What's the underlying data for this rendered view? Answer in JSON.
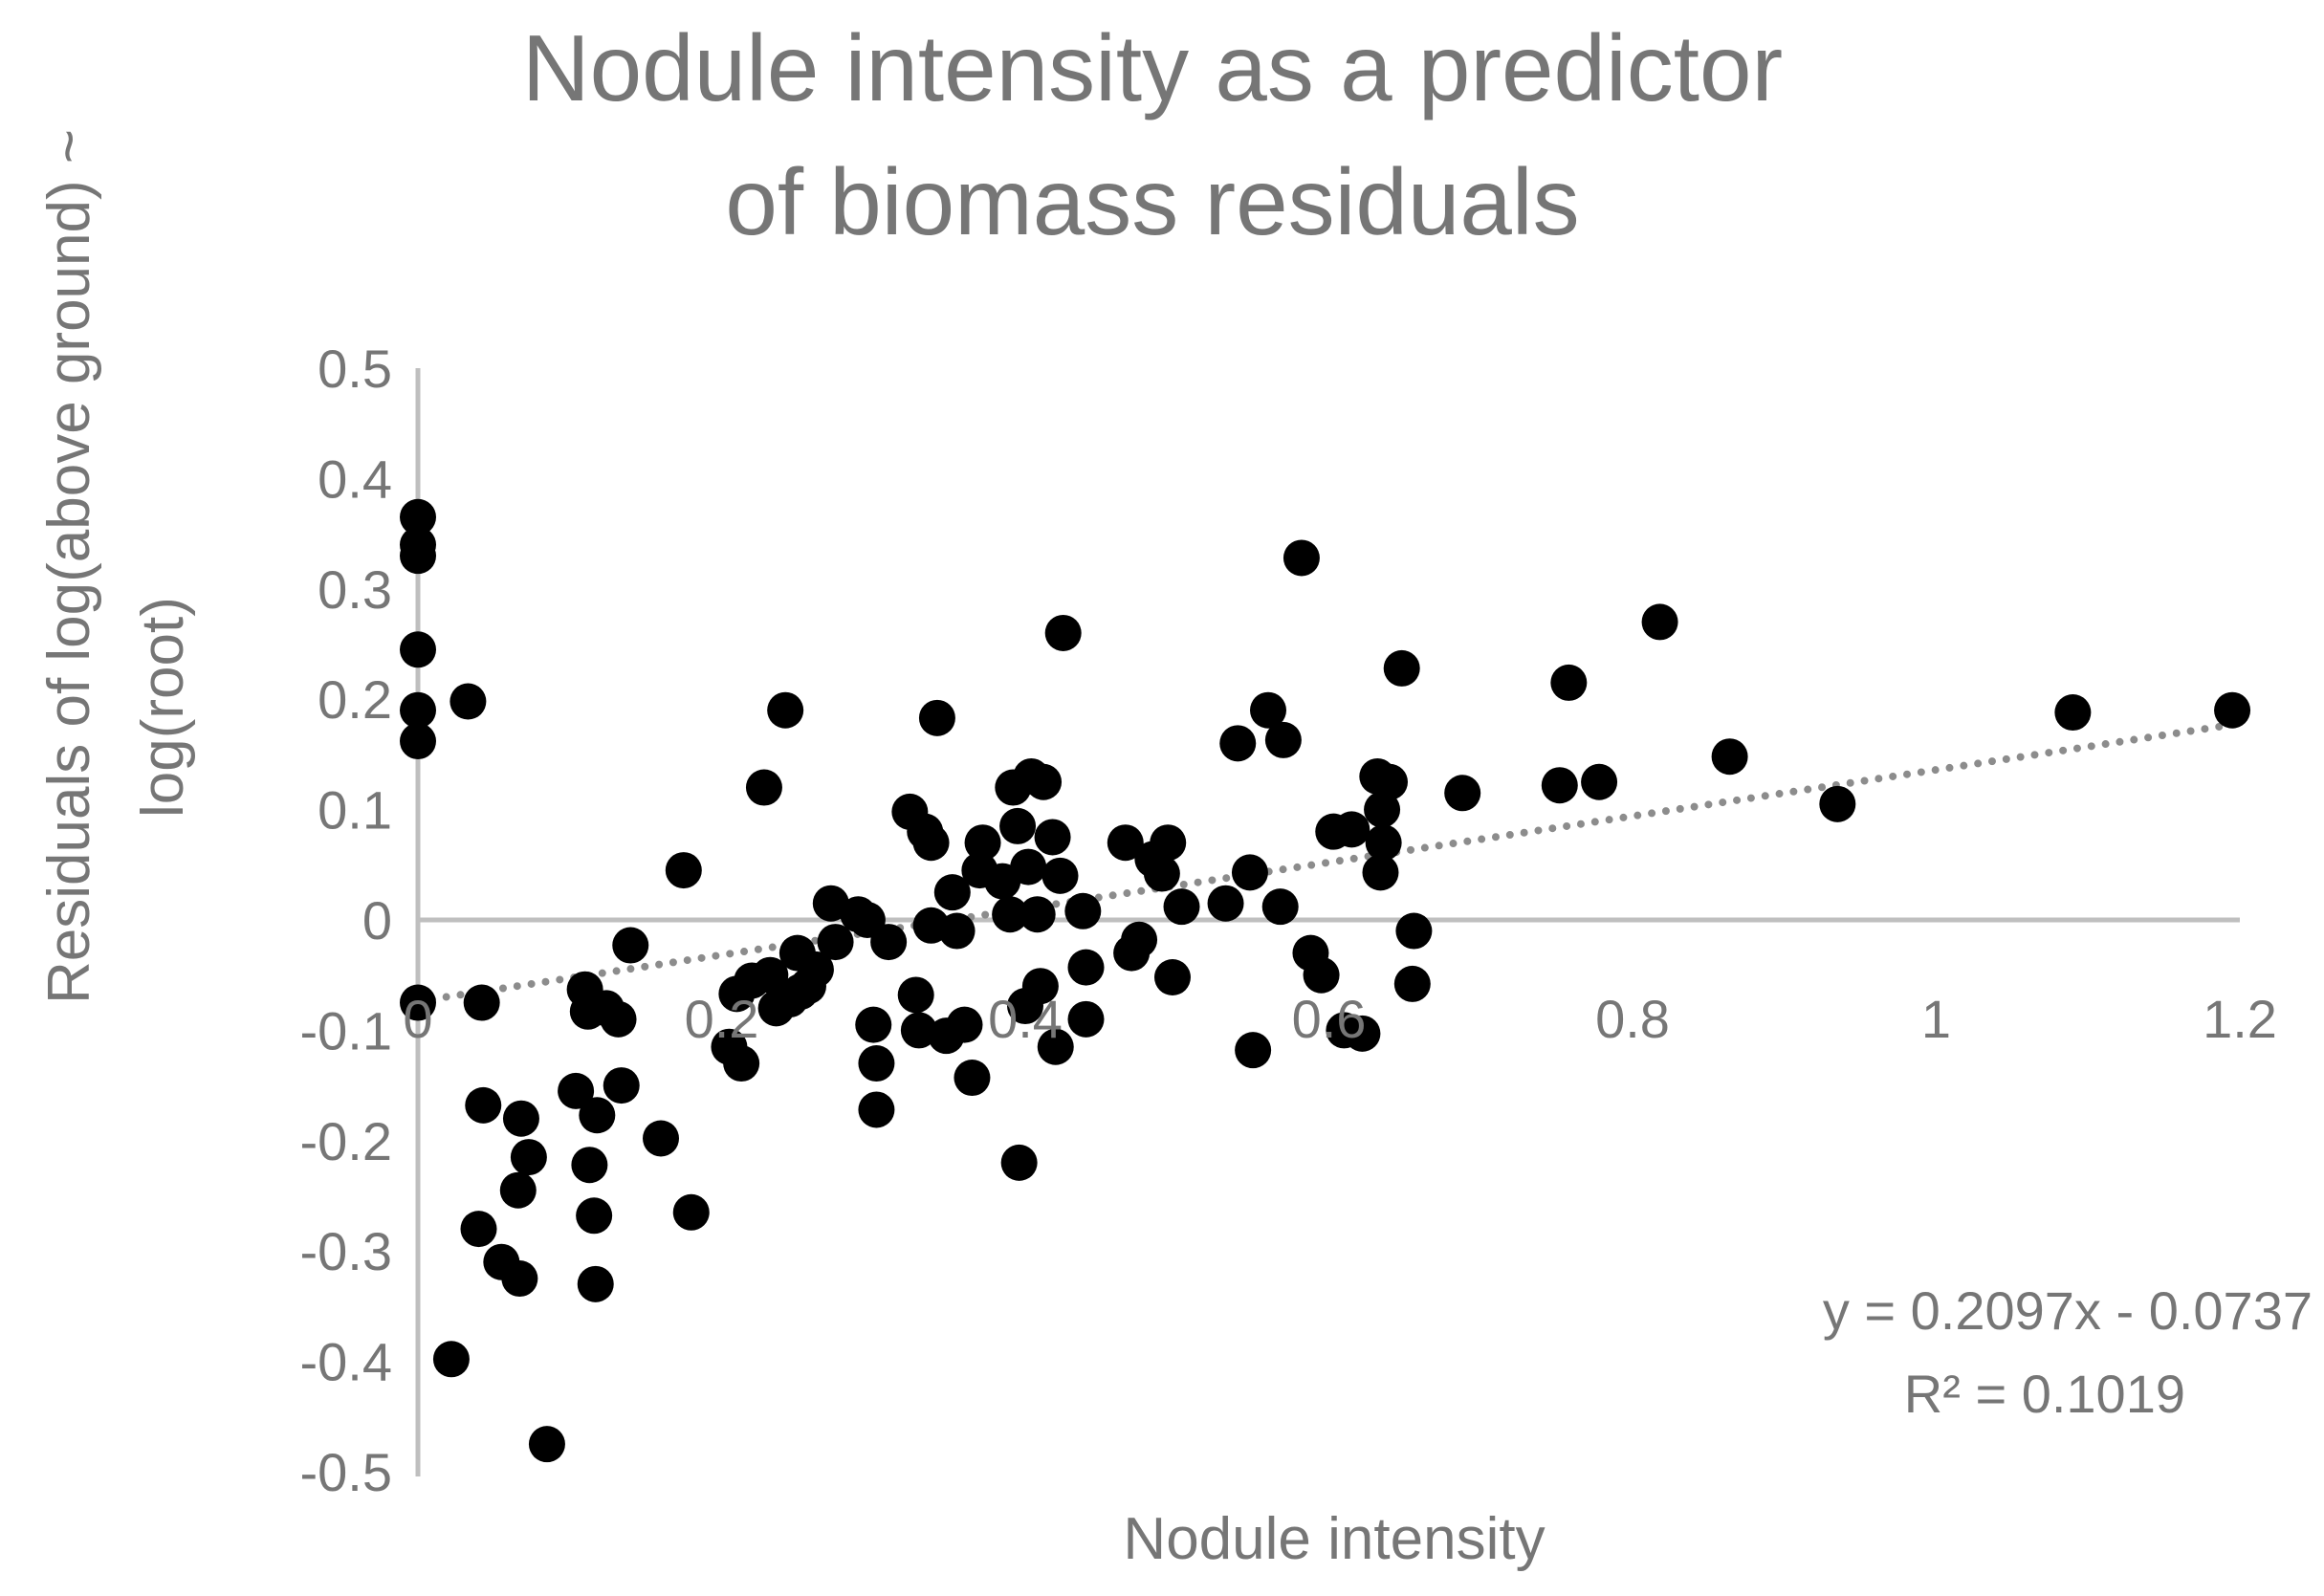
{
  "chart_data": {
    "type": "scatter",
    "title_lines": [
      "Nodule intensity as a predictor",
      "of biomass residuals"
    ],
    "xlabel": "Nodule intensity",
    "ylabel_lines": [
      "Residuals of log(above ground) ~",
      "log(root)"
    ],
    "xlim": [
      0,
      1.2
    ],
    "ylim": [
      -0.5,
      0.5
    ],
    "x_ticks": [
      "0",
      "0.2",
      "0.4",
      "0.6",
      "0.8",
      "1",
      "1.2"
    ],
    "y_ticks": [
      "0.5",
      "0.4",
      "0.3",
      "0.2",
      "0.1",
      "0",
      "-0.1",
      "-0.2",
      "-0.3",
      "-0.4",
      "-0.5"
    ],
    "trendline": {
      "slope": 0.2097,
      "intercept": -0.0737,
      "style": "dotted"
    },
    "annotations": {
      "equation": "y = 0.2097x - 0.0737",
      "r2": "R² = 0.1019"
    },
    "grid": false,
    "colors": {
      "points": "#000000",
      "trendline": "#8c8c8c",
      "axes": "#bfbfbf",
      "text": "#767676"
    },
    "points": [
      [
        0,
        0.365
      ],
      [
        0,
        0.34
      ],
      [
        0,
        0.33
      ],
      [
        0,
        0.245
      ],
      [
        0,
        0.19
      ],
      [
        0,
        0.162
      ],
      [
        0,
        -0.075
      ],
      [
        0.033,
        0.198
      ],
      [
        0.042,
        -0.075
      ],
      [
        0.04,
        -0.28
      ],
      [
        0.043,
        -0.168
      ],
      [
        0.022,
        -0.398
      ],
      [
        0.055,
        -0.31
      ],
      [
        0.067,
        -0.325
      ],
      [
        0.066,
        -0.245
      ],
      [
        0.068,
        -0.18
      ],
      [
        0.073,
        -0.215
      ],
      [
        0.085,
        -0.475
      ],
      [
        0.104,
        -0.155
      ],
      [
        0.11,
        -0.063
      ],
      [
        0.112,
        -0.083
      ],
      [
        0.113,
        -0.222
      ],
      [
        0.116,
        -0.268
      ],
      [
        0.117,
        -0.33
      ],
      [
        0.118,
        -0.177
      ],
      [
        0.124,
        -0.08
      ],
      [
        0.132,
        -0.09
      ],
      [
        0.134,
        -0.15
      ],
      [
        0.14,
        -0.023
      ],
      [
        0.16,
        -0.198
      ],
      [
        0.175,
        0.045
      ],
      [
        0.18,
        -0.265
      ],
      [
        0.205,
        -0.115
      ],
      [
        0.21,
        -0.067
      ],
      [
        0.213,
        -0.13
      ],
      [
        0.22,
        -0.055
      ],
      [
        0.228,
        0.12
      ],
      [
        0.232,
        -0.05
      ],
      [
        0.236,
        -0.08
      ],
      [
        0.242,
        0.19
      ],
      [
        0.245,
        -0.072
      ],
      [
        0.25,
        -0.03
      ],
      [
        0.252,
        -0.065
      ],
      [
        0.257,
        -0.06
      ],
      [
        0.262,
        -0.045
      ],
      [
        0.272,
        0.015
      ],
      [
        0.275,
        -0.02
      ],
      [
        0.29,
        0.005
      ],
      [
        0.296,
        0.0
      ],
      [
        0.3,
        -0.095
      ],
      [
        0.302,
        -0.13
      ],
      [
        0.302,
        -0.172
      ],
      [
        0.31,
        -0.02
      ],
      [
        0.324,
        0.098
      ],
      [
        0.328,
        -0.068
      ],
      [
        0.33,
        -0.1
      ],
      [
        0.334,
        0.08
      ],
      [
        0.338,
        0.07
      ],
      [
        0.338,
        -0.005
      ],
      [
        0.342,
        0.183
      ],
      [
        0.348,
        -0.105
      ],
      [
        0.352,
        0.025
      ],
      [
        0.355,
        -0.01
      ],
      [
        0.36,
        -0.095
      ],
      [
        0.365,
        -0.143
      ],
      [
        0.37,
        0.045
      ],
      [
        0.372,
        0.07
      ],
      [
        0.385,
        0.035
      ],
      [
        0.39,
        0.005
      ],
      [
        0.392,
        0.12
      ],
      [
        0.395,
        0.085
      ],
      [
        0.396,
        -0.22
      ],
      [
        0.4,
        -0.078
      ],
      [
        0.402,
        0.048
      ],
      [
        0.404,
        0.13
      ],
      [
        0.408,
        0.005
      ],
      [
        0.41,
        -0.06
      ],
      [
        0.412,
        0.125
      ],
      [
        0.418,
        0.075
      ],
      [
        0.42,
        -0.115
      ],
      [
        0.423,
        0.04
      ],
      [
        0.425,
        0.26
      ],
      [
        0.438,
        0.008
      ],
      [
        0.44,
        -0.043
      ],
      [
        0.44,
        -0.09
      ],
      [
        0.466,
        0.07
      ],
      [
        0.47,
        -0.03
      ],
      [
        0.475,
        -0.018
      ],
      [
        0.484,
        0.055
      ],
      [
        0.49,
        0.042
      ],
      [
        0.494,
        0.07
      ],
      [
        0.497,
        -0.052
      ],
      [
        0.503,
        0.012
      ],
      [
        0.532,
        0.015
      ],
      [
        0.54,
        0.16
      ],
      [
        0.548,
        0.043
      ],
      [
        0.55,
        -0.118
      ],
      [
        0.56,
        0.19
      ],
      [
        0.568,
        0.012
      ],
      [
        0.57,
        0.163
      ],
      [
        0.582,
        0.328
      ],
      [
        0.588,
        -0.03
      ],
      [
        0.595,
        -0.05
      ],
      [
        0.603,
        0.08
      ],
      [
        0.61,
        -0.1
      ],
      [
        0.615,
        0.082
      ],
      [
        0.622,
        -0.103
      ],
      [
        0.632,
        0.13
      ],
      [
        0.634,
        0.043
      ],
      [
        0.635,
        0.1
      ],
      [
        0.636,
        0.07
      ],
      [
        0.64,
        0.125
      ],
      [
        0.648,
        0.228
      ],
      [
        0.655,
        -0.058
      ],
      [
        0.656,
        -0.01
      ],
      [
        0.688,
        0.115
      ],
      [
        0.752,
        0.122
      ],
      [
        0.758,
        0.215
      ],
      [
        0.778,
        0.125
      ],
      [
        0.818,
        0.27
      ],
      [
        0.864,
        0.148
      ],
      [
        0.935,
        0.105
      ],
      [
        1.09,
        0.188
      ],
      [
        1.195,
        0.19
      ]
    ]
  }
}
